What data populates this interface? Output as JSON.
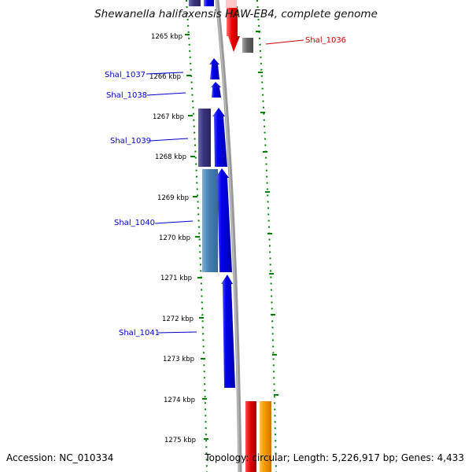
{
  "title": "Shewanella halifaxensis HAW-EB4, complete genome",
  "accession": "Accession: NC_010334",
  "summary": "Topology: circular; Length: 5,226,917 bp; Genes: 4,433",
  "colors": {
    "forward_gene": "#0000ee",
    "forward_cds": "#3a3580",
    "reverse_gene": "#ee0000",
    "reverse_cds": "#6a6a6a",
    "tick": "#008000",
    "backbone": "#999999",
    "forward_label": "#0000cc",
    "reverse_label": "#cc0000",
    "orange_feature": "#ff9900"
  },
  "scale": {
    "unit": "kbp",
    "ticks": [
      "1265 kbp",
      "1266 kbp",
      "1267 kbp",
      "1268 kbp",
      "1269 kbp",
      "1270 kbp",
      "1271 kbp",
      "1272 kbp",
      "1273 kbp",
      "1274 kbp",
      "1275 kbp"
    ]
  },
  "gene_labels": {
    "shal_1036": "Shal_1036",
    "shal_1037": "Shal_1037",
    "shal_1038": "Shal_1038",
    "shal_1039": "Shal_1039",
    "shal_1040": "Shal_1040",
    "shal_1041": "Shal_1041"
  }
}
